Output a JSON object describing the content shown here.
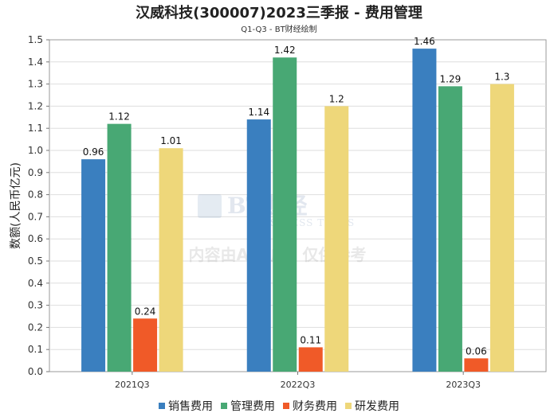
{
  "chart_data": {
    "type": "bar",
    "title": "汉威科技(300007)2023三季报 - 费用管理",
    "subtitle": "Q1-Q3 - BT财经绘制",
    "ylabel": "数额(人民币亿元)",
    "xlabel": "",
    "categories": [
      "2021Q3",
      "2022Q3",
      "2023Q3"
    ],
    "ylim": [
      0,
      1.5
    ],
    "yticks": [
      "0.0",
      "0.1",
      "0.2",
      "0.3",
      "0.4",
      "0.5",
      "0.6",
      "0.7",
      "0.8",
      "0.9",
      "1.0",
      "1.1",
      "1.2",
      "1.3",
      "1.4",
      "1.5"
    ],
    "grid": true,
    "legend_position": "bottom",
    "series": [
      {
        "name": "销售费用",
        "color": "#3a7fbf",
        "values": [
          0.96,
          1.14,
          1.46
        ],
        "labels": [
          "0.96",
          "1.14",
          "1.46"
        ]
      },
      {
        "name": "管理费用",
        "color": "#48a874",
        "values": [
          1.12,
          1.42,
          1.29
        ],
        "labels": [
          "1.12",
          "1.42",
          "1.29"
        ]
      },
      {
        "name": "财务费用",
        "color": "#f05a28",
        "values": [
          0.24,
          0.11,
          0.06
        ],
        "labels": [
          "0.24",
          "0.11",
          "0.06"
        ]
      },
      {
        "name": "研发费用",
        "color": "#eed77a",
        "values": [
          1.01,
          1.2,
          1.3
        ],
        "labels": [
          "1.01",
          "1.2",
          "1.3"
        ]
      }
    ],
    "watermark": {
      "brand": "BT财经",
      "brand_sub": "BUSINESS TIMES",
      "notice": "内容由AI生成，仅供参考"
    }
  }
}
